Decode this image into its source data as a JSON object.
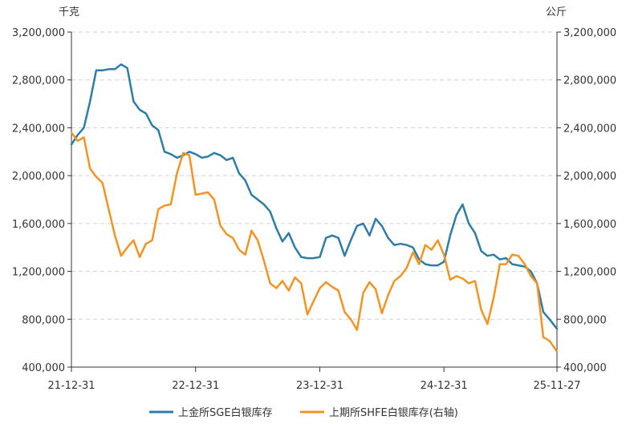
{
  "chart_data": {
    "type": "line",
    "left_unit": "千克",
    "right_unit": "公斤",
    "y_ticks": [
      "3,200,000",
      "2,800,000",
      "2,400,000",
      "2,000,000",
      "1,600,000",
      "1,200,000",
      "800,000",
      "400,000"
    ],
    "y_values": [
      3200000,
      2800000,
      2400000,
      2000000,
      1600000,
      1200000,
      800000,
      400000
    ],
    "ylim": [
      400000,
      3200000
    ],
    "x_ticks": [
      "21-12-31",
      "22-12-31",
      "23-12-31",
      "24-12-31",
      "25-11-27"
    ],
    "x_tick_values": [
      0,
      1,
      2,
      3,
      3.91
    ],
    "xlim": [
      0,
      3.91
    ],
    "grid": true,
    "legend_position": "bottom",
    "colors": {
      "sge": "#2e7da6",
      "shfe": "#f39422"
    },
    "series": [
      {
        "name": "上金所SGE白银库存",
        "axis": "left",
        "x": [
          0,
          0.05,
          0.1,
          0.15,
          0.2,
          0.25,
          0.3,
          0.35,
          0.4,
          0.45,
          0.5,
          0.55,
          0.6,
          0.65,
          0.7,
          0.75,
          0.8,
          0.85,
          0.9,
          0.95,
          1.0,
          1.05,
          1.1,
          1.15,
          1.2,
          1.25,
          1.3,
          1.35,
          1.4,
          1.45,
          1.5,
          1.55,
          1.6,
          1.65,
          1.7,
          1.75,
          1.8,
          1.85,
          1.9,
          1.95,
          2.0,
          2.05,
          2.1,
          2.15,
          2.2,
          2.25,
          2.3,
          2.35,
          2.4,
          2.45,
          2.5,
          2.55,
          2.6,
          2.65,
          2.7,
          2.75,
          2.8,
          2.85,
          2.9,
          2.95,
          3.0,
          3.05,
          3.1,
          3.15,
          3.2,
          3.25,
          3.3,
          3.35,
          3.4,
          3.45,
          3.5,
          3.55,
          3.6,
          3.65,
          3.7,
          3.75,
          3.8,
          3.85,
          3.91
        ],
        "values": [
          2260000,
          2340000,
          2400000,
          2620000,
          2880000,
          2880000,
          2890000,
          2890000,
          2930000,
          2900000,
          2620000,
          2550000,
          2520000,
          2420000,
          2380000,
          2200000,
          2180000,
          2150000,
          2170000,
          2200000,
          2180000,
          2150000,
          2160000,
          2190000,
          2170000,
          2130000,
          2150000,
          2020000,
          1960000,
          1840000,
          1800000,
          1760000,
          1700000,
          1560000,
          1450000,
          1520000,
          1400000,
          1320000,
          1310000,
          1310000,
          1320000,
          1480000,
          1500000,
          1480000,
          1330000,
          1460000,
          1580000,
          1600000,
          1500000,
          1640000,
          1580000,
          1480000,
          1420000,
          1430000,
          1420000,
          1400000,
          1300000,
          1260000,
          1250000,
          1250000,
          1280000,
          1500000,
          1670000,
          1760000,
          1600000,
          1520000,
          1370000,
          1330000,
          1340000,
          1300000,
          1310000,
          1260000,
          1250000,
          1240000,
          1200000,
          1100000,
          860000,
          800000,
          720000
        ]
      },
      {
        "name": "上期所SHFE白银库存(右轴)",
        "axis": "right",
        "x": [
          0,
          0.05,
          0.1,
          0.15,
          0.2,
          0.25,
          0.3,
          0.35,
          0.4,
          0.45,
          0.5,
          0.55,
          0.6,
          0.65,
          0.7,
          0.75,
          0.8,
          0.85,
          0.9,
          0.95,
          1.0,
          1.05,
          1.1,
          1.15,
          1.2,
          1.25,
          1.3,
          1.35,
          1.4,
          1.45,
          1.5,
          1.55,
          1.6,
          1.65,
          1.7,
          1.75,
          1.8,
          1.85,
          1.9,
          1.95,
          2.0,
          2.05,
          2.1,
          2.15,
          2.2,
          2.25,
          2.3,
          2.35,
          2.4,
          2.45,
          2.5,
          2.55,
          2.6,
          2.65,
          2.7,
          2.75,
          2.8,
          2.85,
          2.9,
          2.95,
          3.0,
          3.05,
          3.1,
          3.15,
          3.2,
          3.25,
          3.3,
          3.35,
          3.4,
          3.45,
          3.5,
          3.55,
          3.6,
          3.65,
          3.7,
          3.75,
          3.8,
          3.85,
          3.91
        ],
        "values": [
          2360000,
          2290000,
          2320000,
          2060000,
          1990000,
          1940000,
          1720000,
          1500000,
          1330000,
          1400000,
          1460000,
          1320000,
          1430000,
          1460000,
          1720000,
          1750000,
          1760000,
          2020000,
          2190000,
          2170000,
          1840000,
          1850000,
          1860000,
          1800000,
          1580000,
          1510000,
          1480000,
          1380000,
          1340000,
          1540000,
          1460000,
          1290000,
          1100000,
          1060000,
          1120000,
          1040000,
          1150000,
          1100000,
          840000,
          950000,
          1060000,
          1110000,
          1070000,
          1040000,
          860000,
          800000,
          710000,
          1020000,
          1110000,
          1050000,
          850000,
          1000000,
          1120000,
          1160000,
          1230000,
          1360000,
          1260000,
          1420000,
          1380000,
          1460000,
          1340000,
          1130000,
          1160000,
          1140000,
          1100000,
          1120000,
          880000,
          760000,
          980000,
          1260000,
          1260000,
          1340000,
          1330000,
          1260000,
          1160000,
          1100000,
          650000,
          620000,
          530000
        ]
      }
    ]
  }
}
